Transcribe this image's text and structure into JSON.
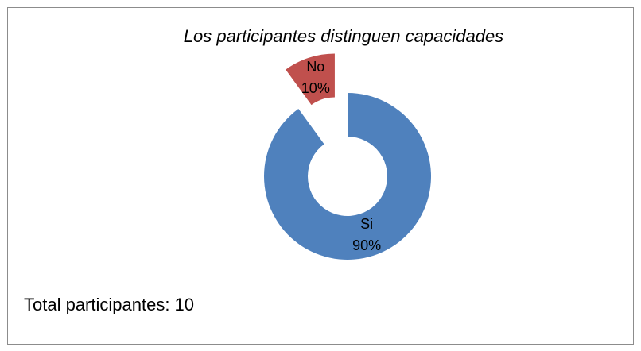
{
  "chart_data": {
    "type": "donut",
    "title": "Los participantes distinguen capacidades",
    "categories": [
      "Si",
      "No"
    ],
    "values": [
      90,
      10
    ],
    "value_labels": [
      "90%",
      "10%"
    ],
    "colors": [
      "#4f81bd",
      "#c0504d"
    ],
    "exploded_slice": "No",
    "annotation": "Total participantes: 10"
  }
}
